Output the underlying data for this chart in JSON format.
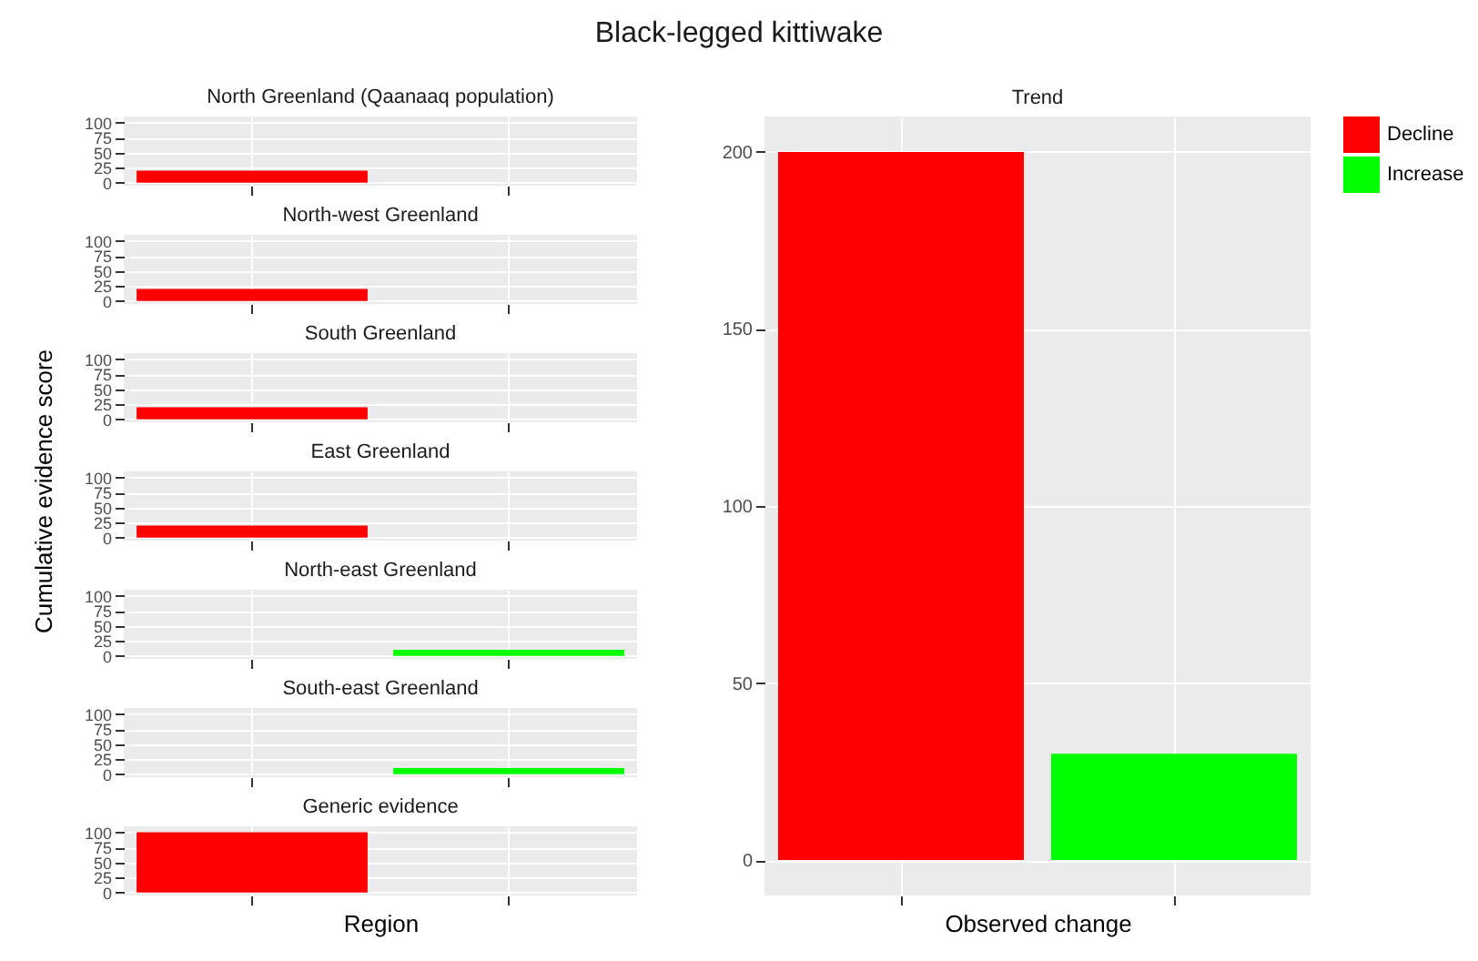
{
  "chart_data": [
    {
      "type": "bar",
      "title": "North Greenland (Qaanaaq population)",
      "annotations": [
        "Black-legged kittiwake"
      ],
      "categories": [
        null,
        null
      ],
      "series": [
        {
          "color": "#ff0000",
          "values": [
            20,
            null
          ]
        },
        {
          "color": "#00ff00",
          "values": [
            null,
            null
          ]
        }
      ],
      "ylim": [
        -5,
        110
      ],
      "yticks": [
        0,
        25,
        50,
        75,
        100
      ],
      "grid": true,
      "tick_labels": "y"
    },
    {
      "type": "bar",
      "title": "North-west Greenland",
      "categories": [
        null,
        null
      ],
      "series": [
        {
          "color": "#ff0000",
          "values": [
            20,
            null
          ]
        },
        {
          "color": "#00ff00",
          "values": [
            null,
            null
          ]
        }
      ],
      "ylim": [
        -5,
        110
      ],
      "yticks": [
        0,
        25,
        50,
        75,
        100
      ],
      "grid": true,
      "tick_labels": "y"
    },
    {
      "type": "bar",
      "title": "South Greenland",
      "categories": [
        null,
        null
      ],
      "series": [
        {
          "color": "#ff0000",
          "values": [
            20,
            null
          ]
        },
        {
          "color": "#00ff00",
          "values": [
            null,
            null
          ]
        }
      ],
      "ylim": [
        -5,
        110
      ],
      "yticks": [
        0,
        25,
        50,
        75,
        100
      ],
      "grid": true,
      "tick_labels": "y"
    },
    {
      "type": "bar",
      "title": "East Greenland",
      "ylabel": "Cumulative evidence score",
      "categories": [
        null,
        null
      ],
      "series": [
        {
          "color": "#ff0000",
          "values": [
            20,
            null
          ]
        },
        {
          "color": "#00ff00",
          "values": [
            null,
            null
          ]
        }
      ],
      "ylim": [
        -5,
        110
      ],
      "yticks": [
        0,
        25,
        50,
        75,
        100
      ],
      "grid": true,
      "tick_labels": "y"
    },
    {
      "type": "bar",
      "title": "North-east Greenland",
      "categories": [
        null,
        null
      ],
      "series": [
        {
          "color": "#ff0000",
          "values": [
            null,
            null
          ]
        },
        {
          "color": "#00ff00",
          "values": [
            null,
            10
          ]
        }
      ],
      "ylim": [
        -5,
        110
      ],
      "yticks": [
        0,
        25,
        50,
        75,
        100
      ],
      "grid": true,
      "tick_labels": "y"
    },
    {
      "type": "bar",
      "title": "South-east Greenland",
      "categories": [
        null,
        null
      ],
      "series": [
        {
          "color": "#ff0000",
          "values": [
            null,
            null
          ]
        },
        {
          "color": "#00ff00",
          "values": [
            null,
            10
          ]
        }
      ],
      "ylim": [
        -5,
        110
      ],
      "yticks": [
        0,
        25,
        50,
        75,
        100
      ],
      "grid": true,
      "tick_labels": "y"
    },
    {
      "type": "bar",
      "title": "Generic evidence",
      "xlabel": "Region",
      "categories": [
        null,
        null
      ],
      "series": [
        {
          "color": "#ff0000",
          "values": [
            100,
            null
          ]
        },
        {
          "color": "#00ff00",
          "values": [
            null,
            null
          ]
        }
      ],
      "ylim": [
        -5,
        110
      ],
      "yticks": [
        0,
        25,
        50,
        75,
        100
      ],
      "grid": true,
      "tick_labels": "y"
    },
    {
      "type": "bar",
      "title": "Trend",
      "xlabel": "Observed change",
      "categories": [
        null,
        null
      ],
      "series": [
        {
          "name": "Decline",
          "color": "#ff0000",
          "values": [
            200,
            null
          ]
        },
        {
          "name": "Increase",
          "color": "#00ff00",
          "values": [
            null,
            30
          ]
        }
      ],
      "ylim": [
        -10,
        210
      ],
      "yticks": [
        0,
        50,
        100,
        150,
        200
      ],
      "grid": true,
      "legend": "right",
      "tick_labels": "y"
    }
  ]
}
